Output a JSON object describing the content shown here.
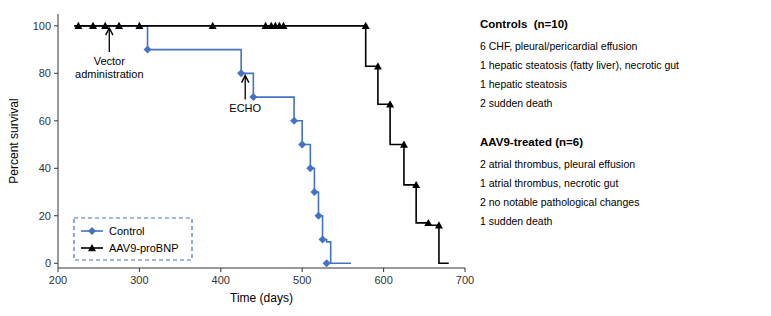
{
  "chart_data": {
    "type": "line",
    "xlabel": "Time (days)",
    "ylabel": "Percent survival",
    "xlim": [
      200,
      700
    ],
    "ylim": [
      -2,
      105
    ],
    "xticks": [
      200,
      300,
      400,
      500,
      600,
      700
    ],
    "yticks": [
      0,
      20,
      40,
      60,
      80,
      100
    ],
    "grid": false,
    "legend": "lower left",
    "series": [
      {
        "name": "Control",
        "color": "#4472C4",
        "marker": "diamond",
        "line_style": "solid",
        "x": [
          220,
          310,
          310,
          425,
          425,
          440,
          440,
          490,
          490,
          500,
          500,
          510,
          510,
          515,
          515,
          520,
          520,
          525,
          525,
          530,
          530,
          535,
          535,
          540,
          540,
          545,
          545,
          550,
          550,
          560
        ],
        "values": [
          100,
          100,
          90,
          90,
          80,
          80,
          70,
          70,
          60,
          60,
          50,
          50,
          40,
          40,
          30,
          30,
          20,
          20,
          10,
          10,
          9,
          9,
          0,
          0,
          0,
          0,
          0,
          0,
          0,
          0
        ],
        "marker_x": [
          310,
          425,
          440,
          490,
          500,
          510,
          515,
          520,
          525,
          530
        ],
        "marker_values": [
          90,
          80,
          70,
          60,
          50,
          40,
          30,
          20,
          10,
          0
        ]
      },
      {
        "name": "AAV9-proBNP",
        "color": "#000000",
        "marker": "triangle",
        "line_style": "solid",
        "x": [
          220,
          578,
          578,
          593,
          593,
          608,
          608,
          625,
          625,
          640,
          640,
          655,
          655,
          668,
          668,
          680
        ],
        "values": [
          100,
          100,
          83,
          83,
          67,
          67,
          50,
          50,
          33,
          33,
          17,
          17,
          16,
          16,
          0,
          0
        ],
        "marker_x": [
          225,
          243,
          258,
          275,
          300,
          390,
          455,
          462,
          467,
          472,
          477,
          578,
          593,
          608,
          625,
          640,
          655,
          668
        ],
        "marker_values": [
          100,
          100,
          100,
          100,
          100,
          100,
          100,
          100,
          100,
          100,
          100,
          100,
          83,
          67,
          50,
          33,
          17,
          16
        ]
      }
    ],
    "annotations": [
      {
        "text": "Vector\nadministration",
        "x": 263,
        "y": 100,
        "y_base": 89
      },
      {
        "text": "ECHO",
        "x": 430,
        "y": 80,
        "y_base": 69
      }
    ],
    "notes": [
      {
        "title": "Controls  (n=10)",
        "lines": [
          "6 CHF, pleural/pericardial effusion",
          "1 hepatic steatosis (fatty liver), necrotic gut",
          "1 hepatic steatosis",
          "2 sudden death"
        ]
      },
      {
        "title": "AAV9-treated (n=6)",
        "lines": [
          "2 atrial thrombus, pleural effusion",
          "1 atrial thrombus, necrotic gut",
          "2 no notable pathological changes",
          "1 sudden death"
        ]
      }
    ]
  }
}
